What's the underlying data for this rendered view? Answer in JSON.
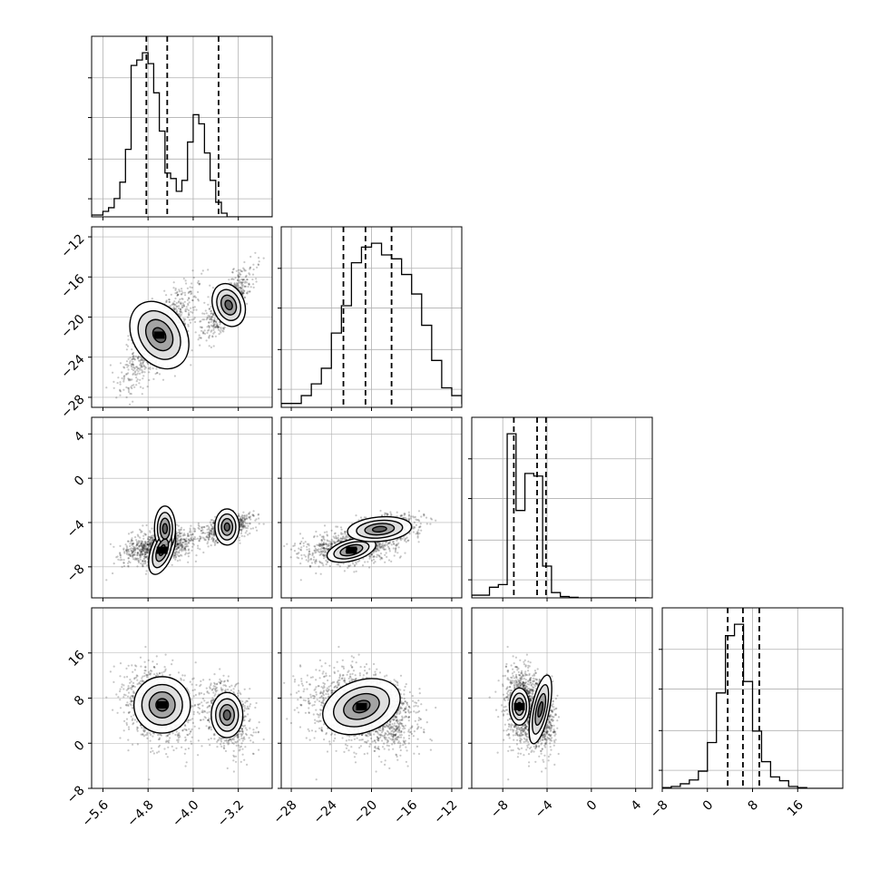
{
  "chart_data": {
    "type": "corner",
    "parameters": 4,
    "grid": true,
    "axes": [
      {
        "name": "",
        "range": [
          -5.8,
          -2.6
        ],
        "ticks": [
          -5.6,
          -4.8,
          -4.0,
          -3.2
        ],
        "tick_labels": [
          "−5.6",
          "−4.8",
          "−4.0",
          "−3.2"
        ]
      },
      {
        "name": "",
        "range": [
          -29,
          -11
        ],
        "ticks": [
          -28,
          -24,
          -20,
          -16,
          -12
        ],
        "tick_labels": [
          "−28",
          "−24",
          "−20",
          "−16",
          "−12"
        ]
      },
      {
        "name": "",
        "range": [
          -10.8,
          5.5
        ],
        "ticks": [
          -8,
          -4,
          0,
          4
        ],
        "tick_labels": [
          "−8",
          "−4",
          "0",
          "4"
        ]
      },
      {
        "name": "",
        "range": [
          -8,
          24
        ],
        "ticks": [
          -8,
          0,
          8,
          16
        ],
        "tick_labels": [
          "−8",
          "0",
          "8",
          "16"
        ]
      }
    ],
    "histograms": [
      {
        "bins_start": -5.8,
        "bin_width": 0.1,
        "counts": [
          1,
          1,
          3,
          5,
          10,
          19,
          37,
          83,
          86,
          90,
          84,
          68,
          47,
          24,
          21,
          14,
          20,
          41,
          56,
          51,
          35,
          20,
          8,
          2,
          0,
          0,
          0,
          0,
          0,
          0,
          0,
          0
        ],
        "quantiles": [
          -4.83,
          -4.46,
          -3.55
        ]
      },
      {
        "bins_start": -29,
        "bin_width": 1,
        "counts": [
          1,
          1,
          3,
          6,
          10,
          19,
          26,
          37,
          41,
          42,
          39,
          38,
          34,
          29,
          21,
          12,
          5,
          3,
          1,
          0,
          0,
          0,
          0,
          0,
          0,
          0
        ],
        "quantiles": [
          -22.8,
          -20.6,
          -18.0
        ]
      },
      {
        "bins_start": -10.8,
        "bin_width": 0.8,
        "counts": [
          1,
          1,
          4,
          5,
          62,
          33,
          47,
          46,
          12,
          2,
          0.5,
          0.2,
          0,
          0,
          0,
          0,
          0,
          0,
          0,
          0
        ],
        "quantiles": [
          -7.0,
          -4.9,
          -4.1
        ]
      },
      {
        "bins_start": -8,
        "bin_width": 1.6,
        "counts": [
          0.2,
          0.5,
          1.2,
          2.2,
          4.5,
          12,
          25,
          40,
          43,
          28,
          15,
          7,
          3,
          2,
          0.5,
          0.2,
          0,
          0,
          0,
          0
        ],
        "quantiles": [
          3.6,
          6.3,
          9.2
        ]
      }
    ],
    "scatter_clusters": [
      {
        "weight": 0.6,
        "mean": [
          -4.6,
          -22.0,
          -6.2,
          6.5
        ],
        "sd": [
          0.3,
          2.3,
          0.8,
          3.3
        ]
      },
      {
        "weight": 0.4,
        "mean": [
          -3.4,
          -18.7,
          -4.5,
          5.0
        ],
        "sd": [
          0.2,
          1.6,
          0.6,
          3.0
        ]
      }
    ],
    "contour_sets": [
      {
        "row": 1,
        "col": 0,
        "blobs": [
          {
            "cx": -4.6,
            "cy": -21.8,
            "rx": 0.47,
            "ry": 3.6,
            "rot": -32
          },
          {
            "cx": -3.37,
            "cy": -18.8,
            "rx": 0.28,
            "ry": 2.2,
            "rot": -20
          }
        ]
      },
      {
        "row": 2,
        "col": 0,
        "blobs": [
          {
            "cx": -4.55,
            "cy": -6.5,
            "rx": 0.45,
            "ry": 1.0,
            "rot": -70
          },
          {
            "cx": -4.5,
            "cy": -4.55,
            "rx": 0.4,
            "ry": 0.95,
            "rot": -90
          },
          {
            "cx": -3.4,
            "cy": -4.4,
            "rx": 0.32,
            "ry": 1.1,
            "rot": -90
          }
        ]
      },
      {
        "row": 2,
        "col": 1,
        "blobs": [
          {
            "cx": -22.0,
            "cy": -6.5,
            "rx": 2.5,
            "ry": 0.95,
            "rot": -15
          },
          {
            "cx": -19.2,
            "cy": -4.6,
            "rx": 3.2,
            "ry": 1.1,
            "rot": -5
          }
        ]
      },
      {
        "row": 3,
        "col": 0,
        "blobs": [
          {
            "cx": -4.55,
            "cy": 6.8,
            "rx": 0.5,
            "ry": 5.0,
            "rot": 0
          },
          {
            "cx": -3.4,
            "cy": 5.0,
            "rx": 0.28,
            "ry": 4.0,
            "rot": 0
          }
        ]
      },
      {
        "row": 3,
        "col": 1,
        "blobs": [
          {
            "cx": -21.0,
            "cy": 6.5,
            "rx": 4.0,
            "ry": 4.6,
            "rot": -20
          }
        ]
      },
      {
        "row": 3,
        "col": 2,
        "blobs": [
          {
            "cx": -6.5,
            "cy": 6.5,
            "rx": 0.9,
            "ry": 3.3,
            "rot": 0
          },
          {
            "cx": -4.6,
            "cy": 6.0,
            "rx": 0.8,
            "ry": 6.2,
            "rot": 12
          }
        ]
      }
    ],
    "colors": {
      "points": "#000000",
      "contour_fill": "#555555",
      "grid": "#b0b0b0",
      "quantile_line": "#000000"
    }
  }
}
